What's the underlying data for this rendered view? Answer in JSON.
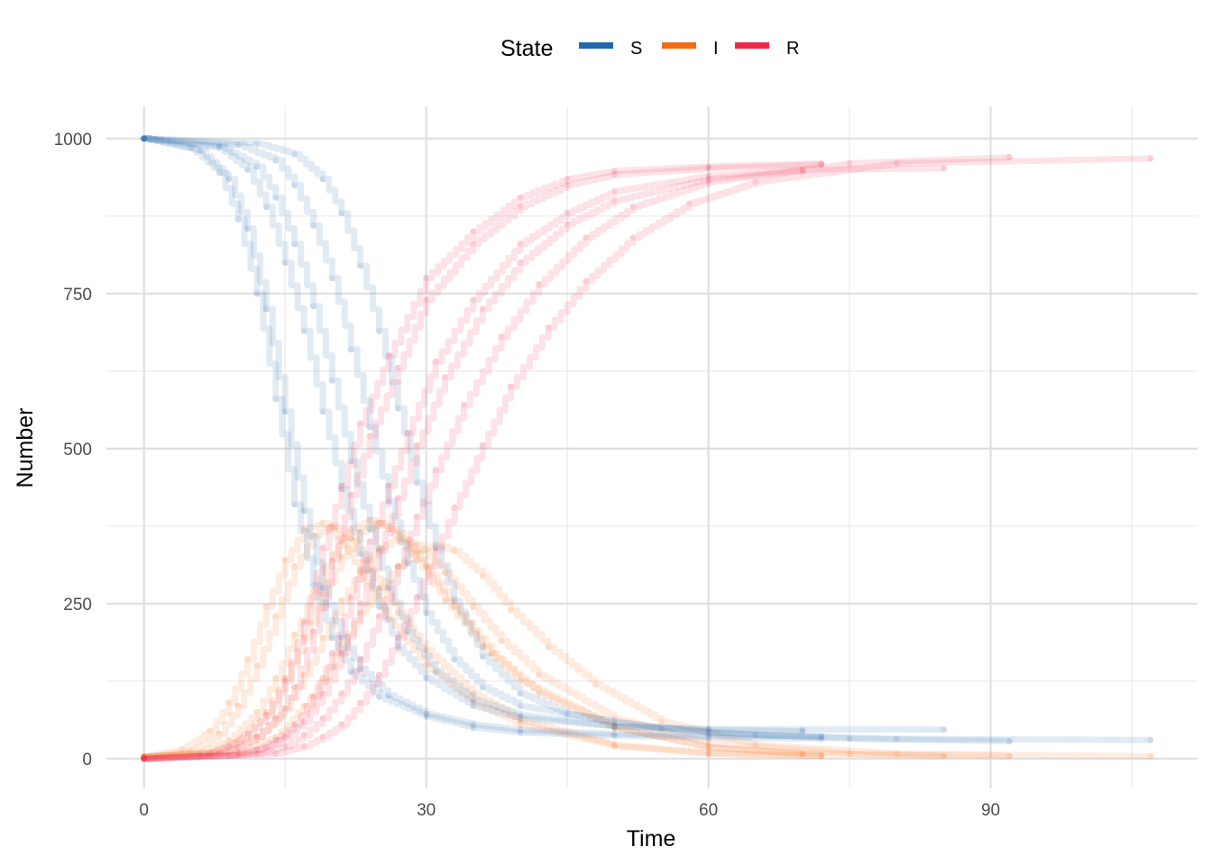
{
  "chart_data": {
    "type": "line",
    "title": "",
    "xlabel": "Time",
    "ylabel": "Number",
    "xlim": [
      -4,
      112
    ],
    "ylim": [
      -48,
      1052
    ],
    "x_ticks": [
      0,
      30,
      60,
      90
    ],
    "x_tick_labels": [
      "0",
      "30",
      "60",
      "90"
    ],
    "y_ticks": [
      0,
      250,
      500,
      750,
      1000
    ],
    "y_tick_labels": [
      "0",
      "250",
      "500",
      "750",
      "1000"
    ],
    "grid": true,
    "legend": {
      "title": "State",
      "placement": "top",
      "entries": [
        {
          "label": "S",
          "color": "#2166ac"
        },
        {
          "label": "I",
          "color": "#f46d15"
        },
        {
          "label": "R",
          "color": "#f0284a"
        }
      ]
    },
    "series": [
      {
        "state": "S",
        "run": 1,
        "color": "#2166ac",
        "x": [
          0,
          5,
          8,
          10,
          12,
          14,
          16,
          18,
          20,
          22,
          25,
          30,
          35,
          40,
          50,
          60,
          72
        ],
        "values": [
          1000,
          985,
          945,
          870,
          750,
          580,
          410,
          280,
          195,
          140,
          100,
          68,
          50,
          42,
          37,
          34,
          32
        ]
      },
      {
        "state": "S",
        "run": 2,
        "color": "#2166ac",
        "x": [
          0,
          6,
          9,
          11,
          13,
          15,
          17,
          19,
          21,
          23,
          26,
          30,
          35,
          40,
          50,
          60,
          72
        ],
        "values": [
          1000,
          980,
          935,
          855,
          725,
          560,
          400,
          275,
          195,
          145,
          102,
          72,
          55,
          46,
          40,
          37,
          36
        ]
      },
      {
        "state": "S",
        "run": 3,
        "color": "#2166ac",
        "x": [
          0,
          8,
          11,
          13,
          15,
          17,
          19,
          21,
          23,
          25,
          27,
          30,
          35,
          40,
          50,
          60,
          70,
          85
        ],
        "values": [
          1000,
          985,
          950,
          890,
          800,
          690,
          560,
          435,
          330,
          245,
          180,
          130,
          85,
          65,
          52,
          48,
          47,
          47
        ]
      },
      {
        "state": "S",
        "run": 4,
        "color": "#2166ac",
        "x": [
          0,
          8,
          12,
          14,
          16,
          18,
          20,
          22,
          24,
          26,
          28,
          31,
          35,
          40,
          50,
          60,
          70
        ],
        "values": [
          1000,
          988,
          955,
          905,
          830,
          730,
          610,
          480,
          370,
          275,
          205,
          140,
          95,
          70,
          52,
          46,
          44
        ]
      },
      {
        "state": "S",
        "run": 5,
        "color": "#2166ac",
        "x": [
          0,
          10,
          14,
          16,
          18,
          20,
          22,
          24,
          26,
          28,
          30,
          33,
          36,
          40,
          50,
          60,
          75,
          92
        ],
        "values": [
          1000,
          990,
          965,
          925,
          860,
          775,
          660,
          535,
          415,
          315,
          235,
          160,
          115,
          85,
          58,
          42,
          32,
          28
        ]
      },
      {
        "state": "S",
        "run": 6,
        "color": "#2166ac",
        "x": [
          0,
          12,
          16,
          19,
          21,
          23,
          25,
          27,
          29,
          31,
          33,
          36,
          40,
          45,
          55,
          65,
          80,
          107
        ],
        "values": [
          1000,
          992,
          975,
          935,
          880,
          795,
          690,
          565,
          445,
          340,
          255,
          165,
          105,
          72,
          48,
          38,
          32,
          30
        ]
      },
      {
        "state": "I",
        "run": 1,
        "color": "#f46d15",
        "x": [
          0,
          4,
          7,
          9,
          11,
          13,
          15,
          17,
          19,
          21,
          23,
          26,
          30,
          35,
          40,
          50,
          60,
          72
        ],
        "values": [
          3,
          15,
          45,
          90,
          160,
          245,
          320,
          370,
          380,
          350,
          300,
          225,
          150,
          90,
          55,
          20,
          8,
          4
        ]
      },
      {
        "state": "I",
        "run": 2,
        "color": "#f46d15",
        "x": [
          0,
          5,
          8,
          10,
          12,
          14,
          16,
          18,
          20,
          22,
          24,
          27,
          30,
          35,
          40,
          50,
          60,
          72
        ],
        "values": [
          3,
          12,
          40,
          85,
          150,
          230,
          310,
          360,
          375,
          355,
          305,
          235,
          175,
          105,
          62,
          22,
          9,
          5
        ]
      },
      {
        "state": "I",
        "run": 3,
        "color": "#f46d15",
        "x": [
          0,
          6,
          9,
          12,
          14,
          16,
          18,
          20,
          22,
          24,
          26,
          29,
          32,
          36,
          40,
          50,
          60,
          70,
          85
        ],
        "values": [
          3,
          10,
          30,
          75,
          130,
          200,
          270,
          330,
          370,
          385,
          370,
          320,
          255,
          180,
          125,
          50,
          18,
          8,
          4
        ]
      },
      {
        "state": "I",
        "run": 4,
        "color": "#f46d15",
        "x": [
          0,
          7,
          10,
          13,
          15,
          17,
          19,
          21,
          23,
          25,
          27,
          30,
          33,
          37,
          42,
          50,
          60,
          70
        ],
        "values": [
          3,
          10,
          30,
          75,
          130,
          195,
          265,
          325,
          365,
          380,
          365,
          310,
          245,
          170,
          105,
          50,
          18,
          7
        ]
      },
      {
        "state": "I",
        "run": 5,
        "color": "#f46d15",
        "x": [
          0,
          8,
          12,
          15,
          17,
          19,
          21,
          23,
          25,
          27,
          29,
          32,
          35,
          38,
          42,
          50,
          60,
          75,
          92
        ],
        "values": [
          3,
          10,
          35,
          80,
          135,
          195,
          255,
          305,
          340,
          355,
          345,
          300,
          245,
          190,
          135,
          65,
          25,
          8,
          4
        ]
      },
      {
        "state": "I",
        "run": 6,
        "color": "#f46d15",
        "x": [
          0,
          10,
          14,
          17,
          19,
          21,
          23,
          25,
          27,
          29,
          31,
          33,
          36,
          39,
          43,
          48,
          55,
          65,
          80,
          107
        ],
        "values": [
          3,
          10,
          35,
          85,
          130,
          185,
          235,
          275,
          310,
          335,
          345,
          335,
          295,
          240,
          180,
          120,
          60,
          22,
          8,
          4
        ]
      },
      {
        "state": "R",
        "run": 1,
        "color": "#f0284a",
        "x": [
          0,
          6,
          9,
          11,
          13,
          15,
          17,
          19,
          21,
          23,
          26,
          30,
          35,
          40,
          45,
          50,
          60,
          72
        ],
        "values": [
          0,
          5,
          20,
          40,
          70,
          125,
          220,
          340,
          440,
          540,
          650,
          775,
          850,
          905,
          935,
          948,
          955,
          960
        ]
      },
      {
        "state": "R",
        "run": 2,
        "color": "#f0284a",
        "x": [
          0,
          7,
          10,
          12,
          14,
          16,
          18,
          20,
          22,
          24,
          27,
          30,
          35,
          40,
          45,
          50,
          60,
          72
        ],
        "values": [
          0,
          5,
          18,
          35,
          65,
          115,
          205,
          320,
          425,
          520,
          630,
          740,
          830,
          890,
          925,
          942,
          952,
          958
        ]
      },
      {
        "state": "R",
        "run": 3,
        "color": "#f0284a",
        "x": [
          0,
          9,
          12,
          14,
          16,
          18,
          20,
          22,
          24,
          26,
          28,
          31,
          35,
          40,
          45,
          50,
          60,
          70,
          85
        ],
        "values": [
          0,
          5,
          15,
          30,
          55,
          100,
          170,
          260,
          350,
          440,
          525,
          640,
          740,
          830,
          880,
          915,
          940,
          950,
          952
        ]
      },
      {
        "state": "R",
        "run": 4,
        "color": "#f0284a",
        "x": [
          0,
          10,
          13,
          15,
          17,
          19,
          21,
          23,
          25,
          27,
          29,
          32,
          36,
          40,
          45,
          50,
          60,
          70
        ],
        "values": [
          0,
          6,
          18,
          35,
          60,
          105,
          170,
          250,
          335,
          420,
          505,
          615,
          725,
          800,
          862,
          900,
          935,
          948
        ]
      },
      {
        "state": "R",
        "run": 5,
        "color": "#f0284a",
        "x": [
          0,
          12,
          15,
          17,
          19,
          21,
          23,
          25,
          27,
          29,
          31,
          34,
          38,
          42,
          47,
          52,
          60,
          75,
          92
        ],
        "values": [
          0,
          8,
          20,
          38,
          65,
          105,
          160,
          230,
          310,
          390,
          465,
          570,
          680,
          765,
          840,
          890,
          930,
          960,
          970
        ]
      },
      {
        "state": "R",
        "run": 6,
        "color": "#f0284a",
        "x": [
          0,
          14,
          17,
          19,
          21,
          23,
          25,
          27,
          29,
          31,
          33,
          36,
          39,
          43,
          47,
          52,
          58,
          65,
          80,
          107
        ],
        "values": [
          0,
          8,
          20,
          35,
          55,
          90,
          135,
          195,
          260,
          335,
          405,
          505,
          600,
          695,
          770,
          840,
          895,
          930,
          960,
          968
        ]
      }
    ]
  }
}
